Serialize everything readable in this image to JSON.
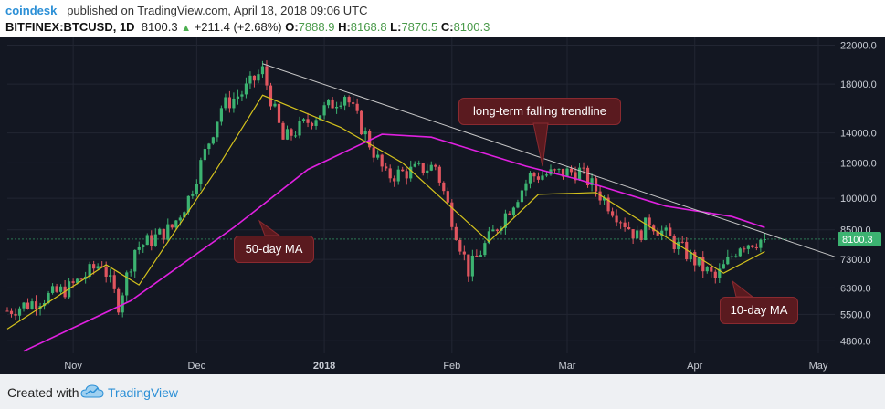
{
  "header": {
    "author": "coindesk_",
    "published": " published on TradingView.com, April 18, 2018 09:06 UTC",
    "symbol": "BITFINEX:BTCUSD, 1D",
    "last": "8100.3",
    "change": "+211.4 (+2.68%)",
    "o_label": "O:",
    "o_value": "7888.9",
    "h_label": "H:",
    "h_value": "8168.8",
    "l_label": "L:",
    "l_value": "7870.5",
    "c_label": "C:",
    "c_value": "8100.3"
  },
  "footer": {
    "created": "Created with",
    "brand": "TradingView"
  },
  "colors": {
    "background": "#131722",
    "up": "#3cb371",
    "down": "#e0555f",
    "ma10": "#d4c21d",
    "ma50": "#e020e0",
    "trendline": "#c8c8c8",
    "price_badge": "#3cb371",
    "annotation": "#5a1a1f"
  },
  "annotations": {
    "trendline": "long-term falling trendline",
    "ma50": "50-day MA",
    "ma10": "10-day MA"
  },
  "chart_data": {
    "type": "candlestick",
    "symbol": "BITFINEX:BTCUSD",
    "interval": "1D",
    "y_scale": "log",
    "ylim": [
      4500,
      23000
    ],
    "y_ticks": [
      22000,
      18000,
      14000,
      12000,
      10000,
      8500,
      7300,
      6300,
      5500,
      4800
    ],
    "y_tick_labels": [
      "22000.0",
      "18000.0",
      "14000.0",
      "12000.0",
      "10000.0",
      "8500.0",
      "7300.0",
      "6300.0",
      "5500.0",
      "4800.0"
    ],
    "x_range": [
      "2017-10-16",
      "2018-05-05"
    ],
    "x_ticks": [
      {
        "date": "2017-11-01",
        "label": "Nov",
        "bold": false
      },
      {
        "date": "2017-12-01",
        "label": "Dec",
        "bold": false
      },
      {
        "date": "2018-01-01",
        "label": "2018",
        "bold": true
      },
      {
        "date": "2018-02-01",
        "label": "Feb",
        "bold": false
      },
      {
        "date": "2018-03-01",
        "label": "Mar",
        "bold": false
      },
      {
        "date": "2018-04-01",
        "label": "Apr",
        "bold": false
      },
      {
        "date": "2018-05-01",
        "label": "May",
        "bold": false
      }
    ],
    "last_price": 8100.3,
    "last_price_label": "8100.3",
    "key_closes": [
      {
        "date": "2017-10-16",
        "close": 5600
      },
      {
        "date": "2017-10-21",
        "close": 5800
      },
      {
        "date": "2017-10-31",
        "close": 6300
      },
      {
        "date": "2017-11-08",
        "close": 7200
      },
      {
        "date": "2017-11-12",
        "close": 5800
      },
      {
        "date": "2017-11-16",
        "close": 7700
      },
      {
        "date": "2017-11-25",
        "close": 8600
      },
      {
        "date": "2017-11-29",
        "close": 10000
      },
      {
        "date": "2017-12-07",
        "close": 16000
      },
      {
        "date": "2017-12-12",
        "close": 17200
      },
      {
        "date": "2017-12-17",
        "close": 19300
      },
      {
        "date": "2017-12-22",
        "close": 13500
      },
      {
        "date": "2018-01-06",
        "close": 17100
      },
      {
        "date": "2018-01-16",
        "close": 11200
      },
      {
        "date": "2018-01-28",
        "close": 11800
      },
      {
        "date": "2018-02-05",
        "close": 6900
      },
      {
        "date": "2018-02-20",
        "close": 11200
      },
      {
        "date": "2018-03-04",
        "close": 11500
      },
      {
        "date": "2018-03-18",
        "close": 8200
      },
      {
        "date": "2018-03-21",
        "close": 8900
      },
      {
        "date": "2018-04-06",
        "close": 6600
      },
      {
        "date": "2018-04-12",
        "close": 7900
      },
      {
        "date": "2018-04-18",
        "close": 8100
      }
    ],
    "ma50_points": [
      {
        "date": "2017-10-20",
        "value": 4550
      },
      {
        "date": "2017-11-15",
        "value": 5900
      },
      {
        "date": "2017-12-10",
        "value": 8600
      },
      {
        "date": "2017-12-28",
        "value": 11600
      },
      {
        "date": "2018-01-15",
        "value": 13900
      },
      {
        "date": "2018-01-27",
        "value": 13700
      },
      {
        "date": "2018-02-19",
        "value": 11800
      },
      {
        "date": "2018-03-04",
        "value": 11000
      },
      {
        "date": "2018-03-25",
        "value": 9600
      },
      {
        "date": "2018-04-10",
        "value": 9100
      },
      {
        "date": "2018-04-18",
        "value": 8600
      }
    ],
    "ma10_points": [
      {
        "date": "2017-10-16",
        "value": 5100
      },
      {
        "date": "2017-11-09",
        "value": 7100
      },
      {
        "date": "2017-11-17",
        "value": 6400
      },
      {
        "date": "2017-12-05",
        "value": 11300
      },
      {
        "date": "2017-12-17",
        "value": 17000
      },
      {
        "date": "2018-01-05",
        "value": 14400
      },
      {
        "date": "2018-01-20",
        "value": 12000
      },
      {
        "date": "2018-02-10",
        "value": 8000
      },
      {
        "date": "2018-02-22",
        "value": 10200
      },
      {
        "date": "2018-03-08",
        "value": 10300
      },
      {
        "date": "2018-03-24",
        "value": 8300
      },
      {
        "date": "2018-04-08",
        "value": 6800
      },
      {
        "date": "2018-04-18",
        "value": 7600
      }
    ],
    "trendline": {
      "start": {
        "date": "2017-12-17",
        "value": 20000
      },
      "end": {
        "date": "2018-05-05",
        "value": 7400
      }
    }
  }
}
